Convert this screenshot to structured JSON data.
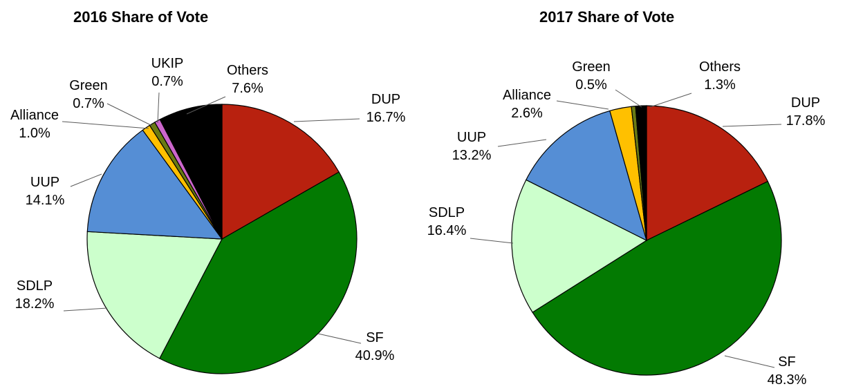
{
  "chart_data": [
    {
      "type": "pie",
      "title": "2016 Share of Vote",
      "slices": [
        {
          "label": "DUP",
          "value": 16.7,
          "display": "16.7%",
          "color": "#B8210F"
        },
        {
          "label": "SF",
          "value": 40.9,
          "display": "40.9%",
          "color": "#037A02"
        },
        {
          "label": "SDLP",
          "value": 18.2,
          "display": "18.2%",
          "color": "#CCFFCC"
        },
        {
          "label": "UUP",
          "value": 14.1,
          "display": "14.1%",
          "color": "#558ED5"
        },
        {
          "label": "Alliance",
          "value": 1.0,
          "display": "1.0%",
          "color": "#FFC000"
        },
        {
          "label": "Green",
          "value": 0.7,
          "display": "0.7%",
          "color": "#6A7A14"
        },
        {
          "label": "UKIP",
          "value": 0.7,
          "display": "0.7%",
          "color": "#CC66CC"
        },
        {
          "label": "Others",
          "value": 7.6,
          "display": "7.6%",
          "color": "#000000"
        }
      ]
    },
    {
      "type": "pie",
      "title": "2017 Share of Vote",
      "slices": [
        {
          "label": "DUP",
          "value": 17.8,
          "display": "17.8%",
          "color": "#B8210F"
        },
        {
          "label": "SF",
          "value": 48.3,
          "display": "48.3%",
          "color": "#037A02"
        },
        {
          "label": "SDLP",
          "value": 16.4,
          "display": "16.4%",
          "color": "#CCFFCC"
        },
        {
          "label": "UUP",
          "value": 13.2,
          "display": "13.2%",
          "color": "#558ED5"
        },
        {
          "label": "Alliance",
          "value": 2.6,
          "display": "2.6%",
          "color": "#FFC000"
        },
        {
          "label": "Green",
          "value": 0.5,
          "display": "0.5%",
          "color": "#6A7A14"
        },
        {
          "label": "Others",
          "value": 1.3,
          "display": "1.3%",
          "color": "#000000"
        }
      ]
    }
  ]
}
